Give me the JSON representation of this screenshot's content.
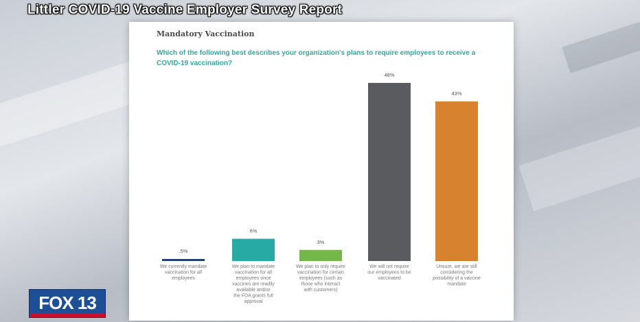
{
  "header": {
    "report_title": "Littler COVID-19 Vaccine Employer Survey Report"
  },
  "card": {
    "section_title": "Mandatory Vaccination",
    "question": "Which of the following best describes your organization's plans to require employees to receive a COVID-19 vaccination?"
  },
  "logo": {
    "text": "FOX 13"
  },
  "colors": {
    "navy": "#1f3f6e",
    "teal": "#27aaa3",
    "green": "#74b84a",
    "gray": "#5a5b5e",
    "orange": "#d6822e"
  },
  "chart_data": {
    "type": "bar",
    "categories": [
      [
        "We currently mandate",
        "vaccination for all",
        "employees"
      ],
      [
        "We plan to mandate",
        "vaccination for all",
        "employees once",
        "vaccines are readily",
        "available and/or",
        "the FDA grants full",
        "approval"
      ],
      [
        "We plan to only require",
        "vaccination for certain",
        "employees (such as",
        "those who interact",
        "with customers)"
      ],
      [
        "We will not require",
        "our employees to be",
        "vaccinated"
      ],
      [
        "Unsure, we are still",
        "considering the",
        "possibility of a vaccine",
        "mandate"
      ]
    ],
    "values": [
      0.5,
      6,
      3,
      48,
      43
    ],
    "value_labels": [
      ".5%",
      "6%",
      "3%",
      "48%",
      "43%"
    ],
    "colors": [
      "#1f3f6e",
      "#27aaa3",
      "#74b84a",
      "#5a5b5e",
      "#d6822e"
    ],
    "ylim": [
      0,
      48
    ],
    "grid": false,
    "legend": "none"
  }
}
